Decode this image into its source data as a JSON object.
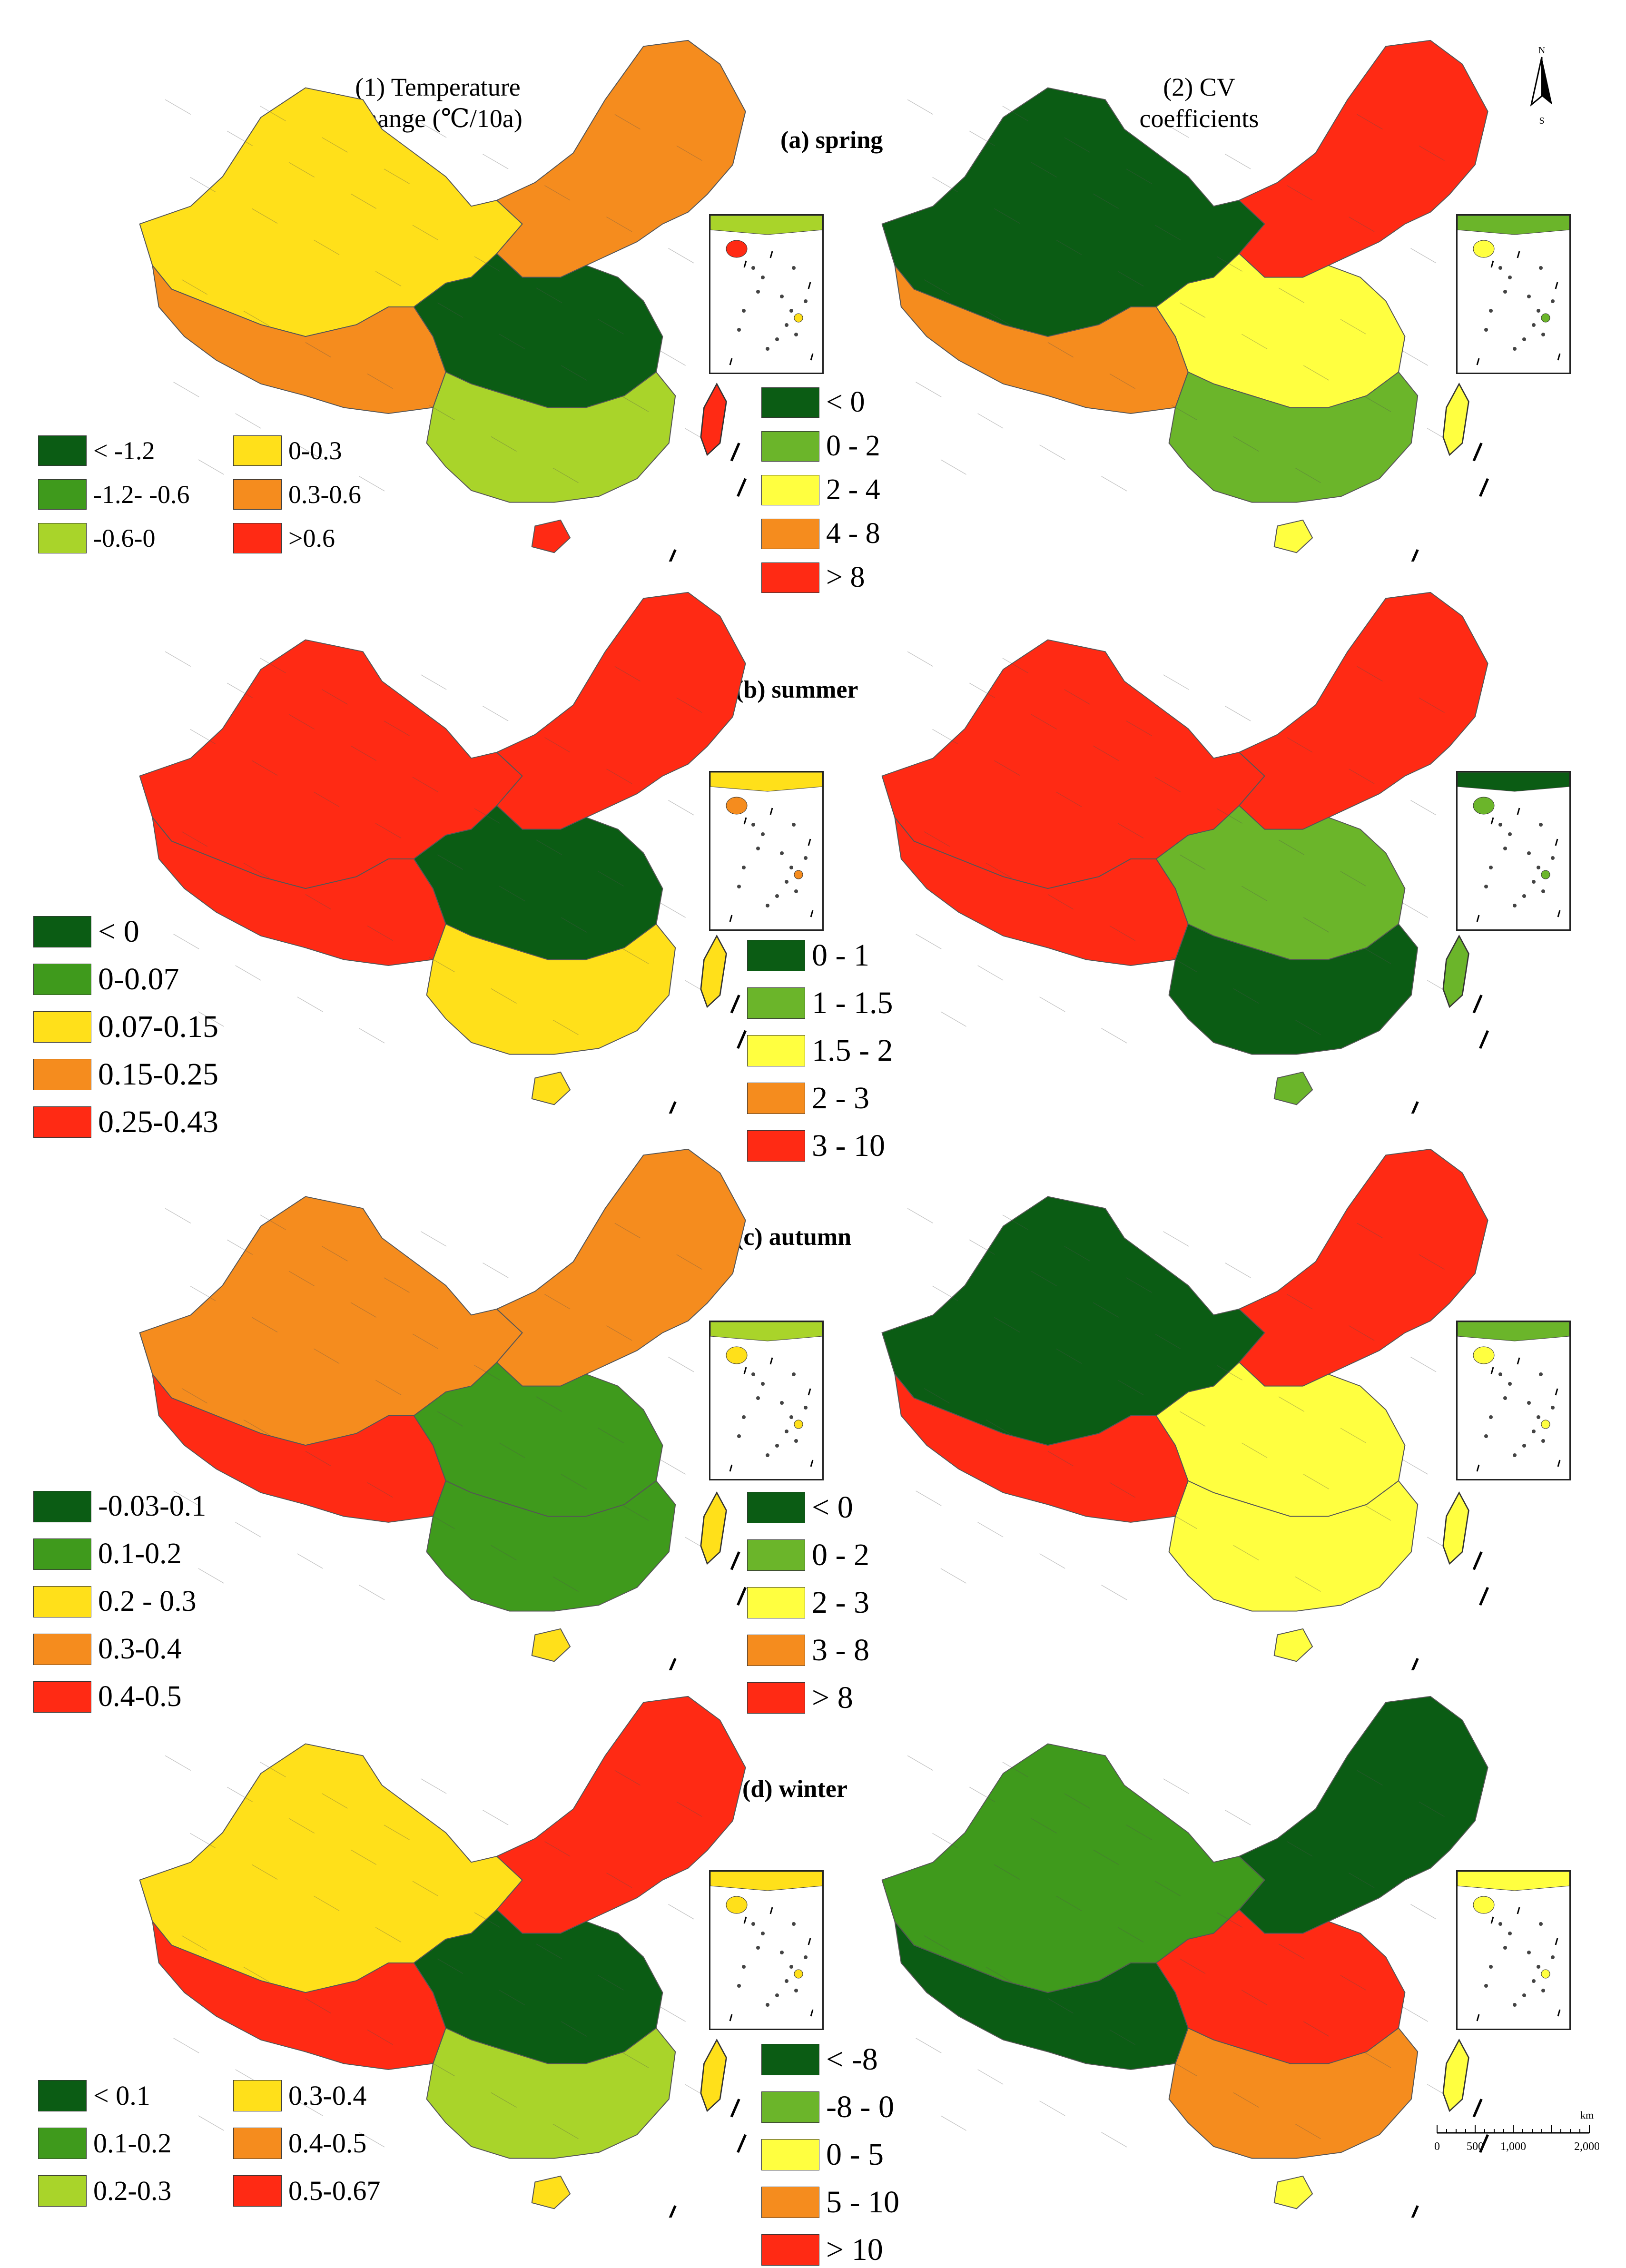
{
  "headers": {
    "left_line1": "(1) Temperature",
    "left_line2": "change (℃/10a)",
    "right_line1": "(2) CV",
    "right_line2": "coefficients"
  },
  "north_arrow": {
    "top": "N",
    "bottom": "S"
  },
  "scale_bar": {
    "unit": "km",
    "ticks": [
      "0",
      "500",
      "1,000",
      "2,000"
    ]
  },
  "colors": {
    "dark_green": "#0b5c14",
    "green": "#3f9a1c",
    "light_green": "#a9d42a",
    "yellow": "#ffe01a",
    "bright_yellow": "#ffff40",
    "orange": "#f58c1e",
    "red": "#ff2a14"
  },
  "panels": [
    {
      "season": "(a) spring",
      "temperature_legend": [
        {
          "label": "< -1.2",
          "color": "#0b5c14"
        },
        {
          "label": "-1.2- -0.6",
          "color": "#3f9a1c"
        },
        {
          "label": "-0.6-0",
          "color": "#a9d42a"
        },
        {
          "label": "0-0.3",
          "color": "#ffe01a"
        },
        {
          "label": "0.3-0.6",
          "color": "#f58c1e"
        },
        {
          "label": ">0.6",
          "color": "#ff2a14"
        }
      ],
      "cv_legend": [
        {
          "label": "< 0",
          "color": "#0b5c14"
        },
        {
          "label": "0 - 2",
          "color": "#6bb52a"
        },
        {
          "label": "2 - 4",
          "color": "#ffff40"
        },
        {
          "label": "4 - 8",
          "color": "#f58c1e"
        },
        {
          "label": "> 8",
          "color": "#ff2a14"
        }
      ]
    },
    {
      "season": "(b) summer",
      "temperature_legend": [
        {
          "label": "< 0",
          "color": "#0b5c14"
        },
        {
          "label": "0-0.07",
          "color": "#3f9a1c"
        },
        {
          "label": "0.07-0.15",
          "color": "#ffe01a"
        },
        {
          "label": "0.15-0.25",
          "color": "#f58c1e"
        },
        {
          "label": "0.25-0.43",
          "color": "#ff2a14"
        }
      ],
      "cv_legend": [
        {
          "label": "0 - 1",
          "color": "#0b5c14"
        },
        {
          "label": "1 - 1.5",
          "color": "#6bb52a"
        },
        {
          "label": "1.5 - 2",
          "color": "#ffff40"
        },
        {
          "label": "2 - 3",
          "color": "#f58c1e"
        },
        {
          "label": "3 - 10",
          "color": "#ff2a14"
        }
      ]
    },
    {
      "season": "(c) autumn",
      "temperature_legend": [
        {
          "label": "-0.03-0.1",
          "color": "#0b5c14"
        },
        {
          "label": "0.1-0.2",
          "color": "#3f9a1c"
        },
        {
          "label": "0.2 - 0.3",
          "color": "#ffe01a"
        },
        {
          "label": "0.3-0.4",
          "color": "#f58c1e"
        },
        {
          "label": "0.4-0.5",
          "color": "#ff2a14"
        }
      ],
      "cv_legend": [
        {
          "label": "< 0",
          "color": "#0b5c14"
        },
        {
          "label": "0 - 2",
          "color": "#6bb52a"
        },
        {
          "label": "2 - 3",
          "color": "#ffff40"
        },
        {
          "label": "3 - 8",
          "color": "#f58c1e"
        },
        {
          "label": "> 8",
          "color": "#ff2a14"
        }
      ]
    },
    {
      "season": "(d) winter",
      "temperature_legend": [
        {
          "label": "< 0.1",
          "color": "#0b5c14"
        },
        {
          "label": "0.1-0.2",
          "color": "#3f9a1c"
        },
        {
          "label": "0.2-0.3",
          "color": "#a9d42a"
        },
        {
          "label": "0.3-0.4",
          "color": "#ffe01a"
        },
        {
          "label": "0.4-0.5",
          "color": "#f58c1e"
        },
        {
          "label": "0.5-0.67",
          "color": "#ff2a14"
        }
      ],
      "cv_legend": [
        {
          "label": "< -8",
          "color": "#0b5c14"
        },
        {
          "label": "-8 - 0",
          "color": "#6bb52a"
        },
        {
          "label": "0 - 5",
          "color": "#ffff40"
        },
        {
          "label": "5 - 10",
          "color": "#f58c1e"
        },
        {
          "label": "> 10",
          "color": "#ff2a14"
        }
      ]
    }
  ],
  "map_fills": {
    "spring_temperature": {
      "west": "#ffe01a",
      "northeast": "#f58c1e",
      "center": "#0b5c14",
      "south": "#a9d42a",
      "tibet": "#f58c1e",
      "island": "#ff2a14"
    },
    "spring_cv": {
      "west": "#0b5c14",
      "northeast": "#ff2a14",
      "center": "#ffff40",
      "south": "#6bb52a",
      "tibet": "#f58c1e",
      "island": "#ffff40"
    },
    "summer_temperature": {
      "west": "#ff2a14",
      "northeast": "#ff2a14",
      "center": "#0b5c14",
      "south": "#ffe01a",
      "tibet": "#ff2a14",
      "island": "#ffe01a"
    },
    "summer_cv": {
      "west": "#ff2a14",
      "northeast": "#ff2a14",
      "center": "#6bb52a",
      "south": "#0b5c14",
      "tibet": "#ff2a14",
      "island": "#6bb52a"
    },
    "autumn_temperature": {
      "west": "#f58c1e",
      "northeast": "#f58c1e",
      "center": "#3f9a1c",
      "south": "#3f9a1c",
      "tibet": "#ff2a14",
      "island": "#ffe01a"
    },
    "autumn_cv": {
      "west": "#0b5c14",
      "northeast": "#ff2a14",
      "center": "#ffff40",
      "south": "#ffff40",
      "tibet": "#ff2a14",
      "island": "#ffff40"
    },
    "winter_temperature": {
      "west": "#ffe01a",
      "northeast": "#ff2a14",
      "center": "#0b5c14",
      "south": "#a9d42a",
      "tibet": "#ff2a14",
      "island": "#ffe01a"
    },
    "winter_cv": {
      "west": "#3f9a1c",
      "northeast": "#0b5c14",
      "center": "#ff2a14",
      "south": "#f58c1e",
      "tibet": "#0b5c14",
      "island": "#ffff40"
    }
  }
}
